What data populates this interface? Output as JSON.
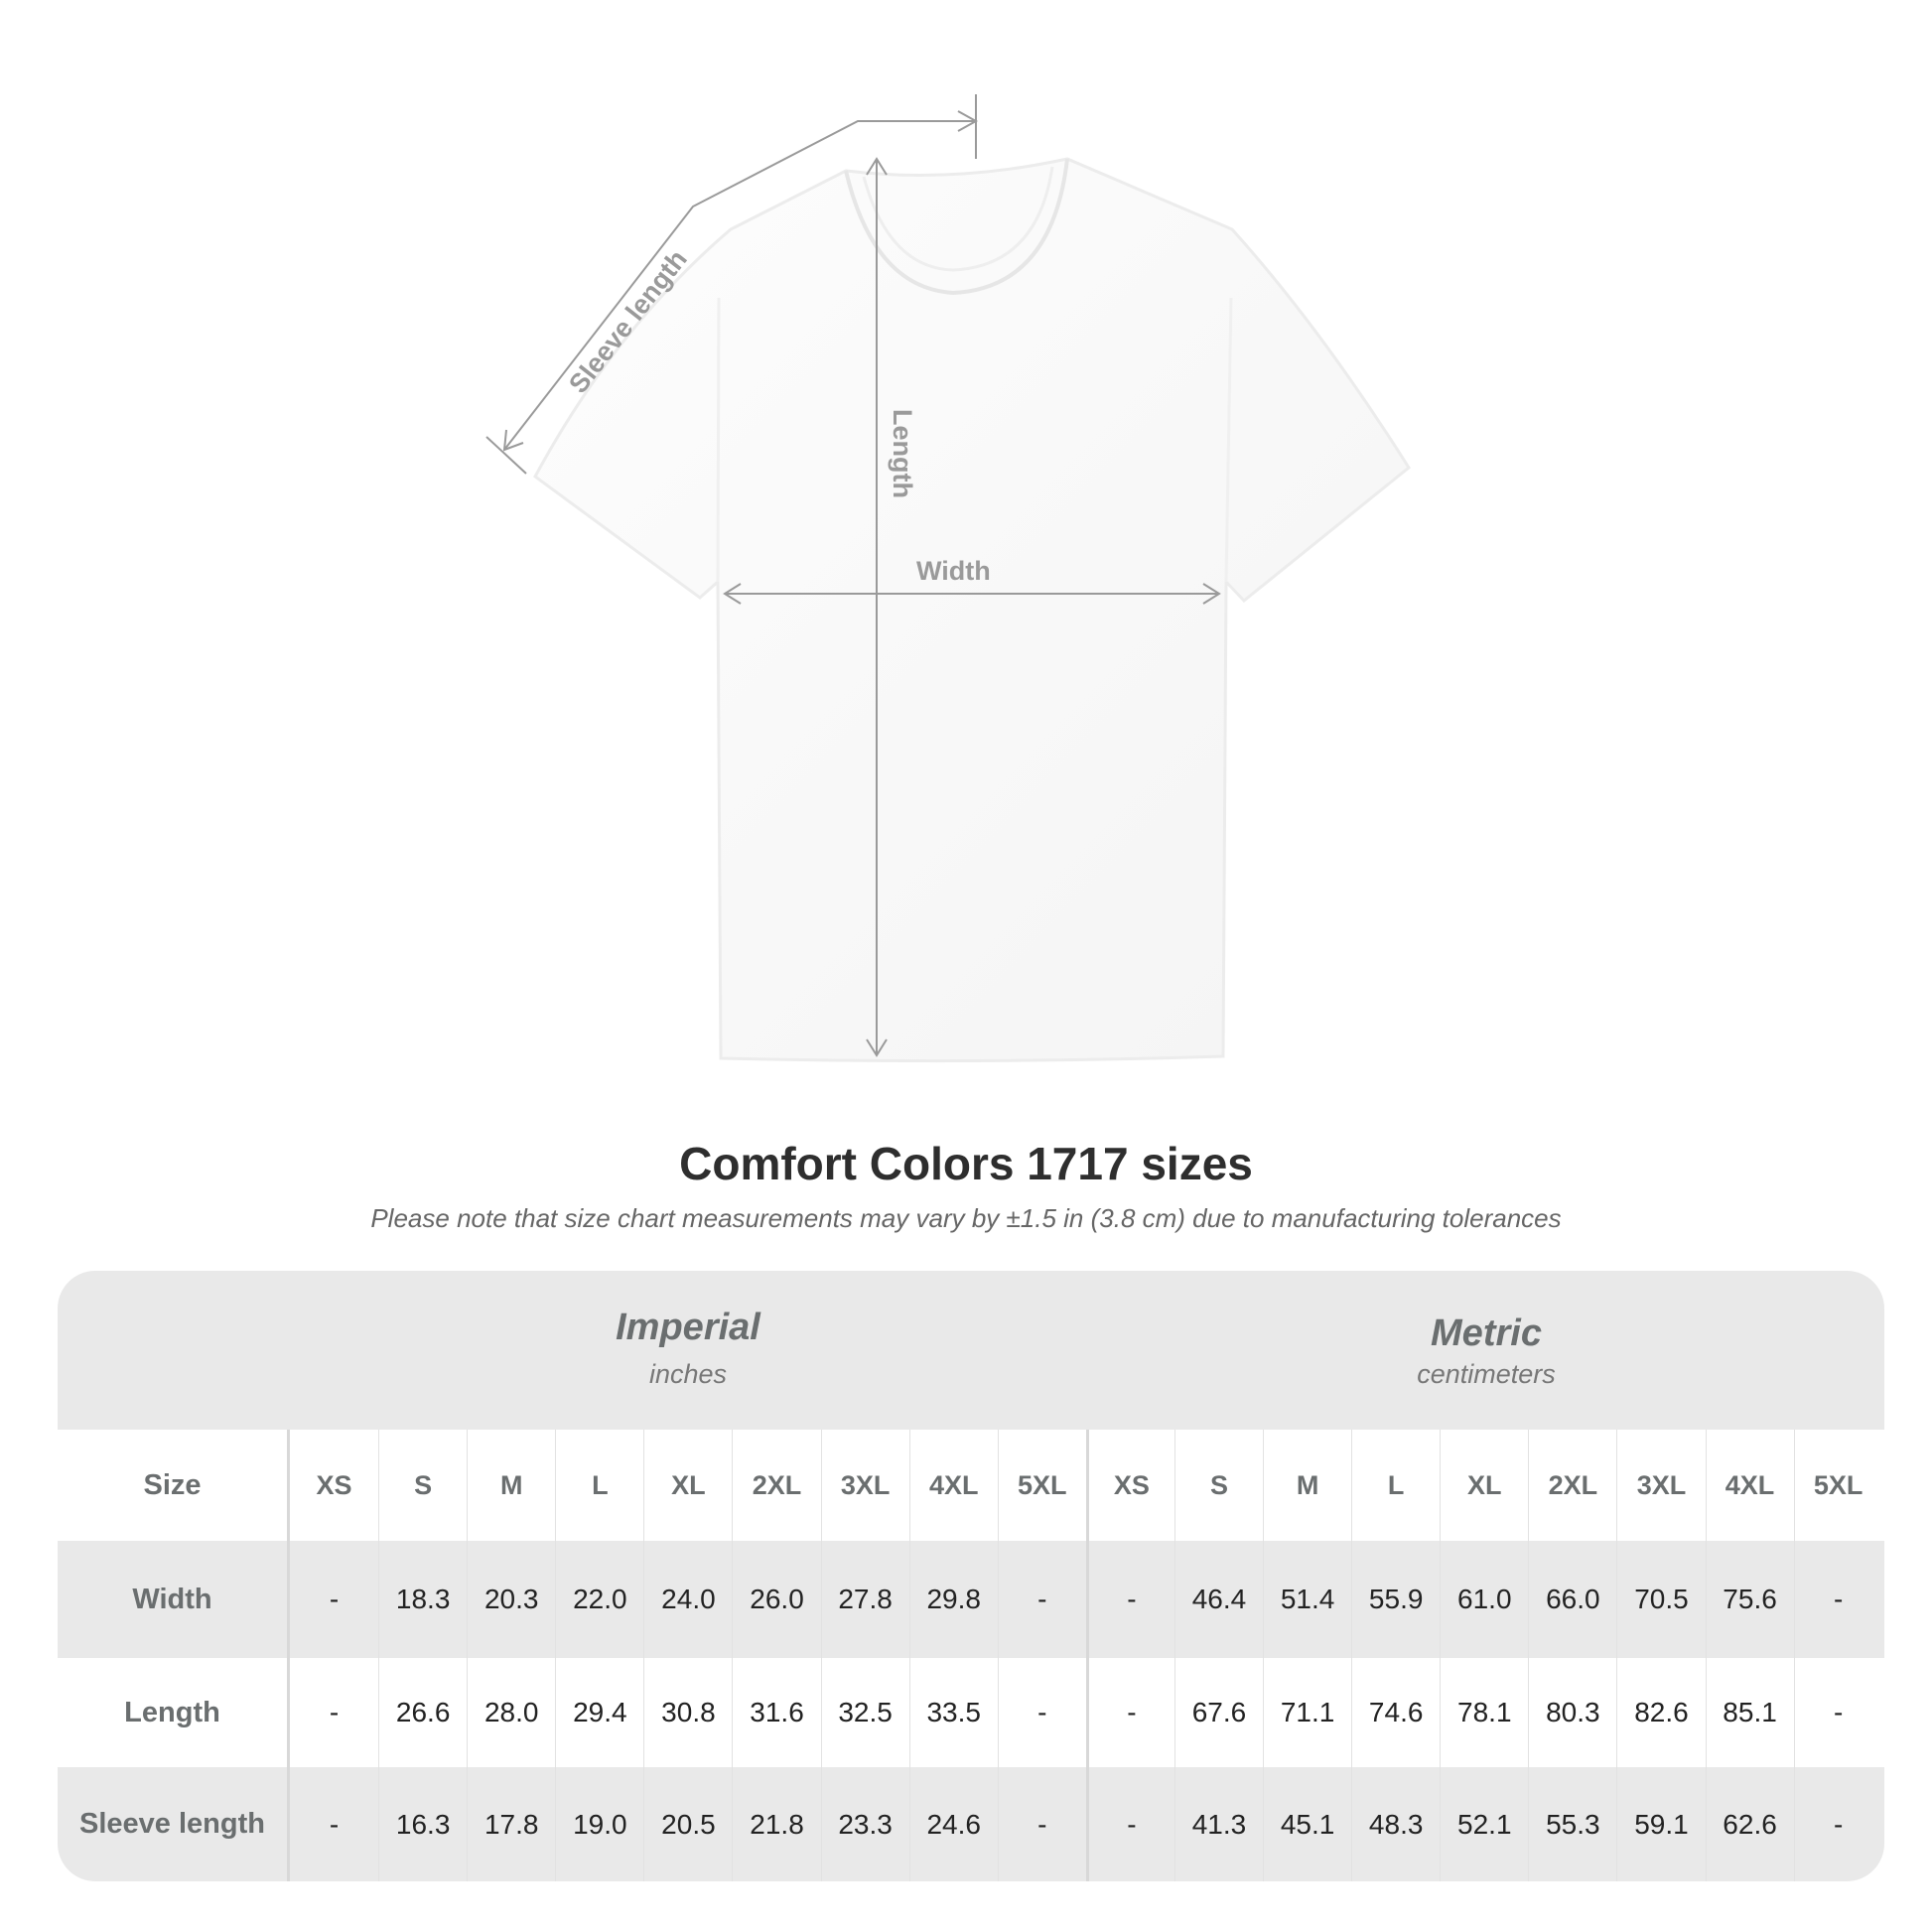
{
  "diagram": {
    "labels": {
      "sleeve": "Sleeve length",
      "length": "Length",
      "width": "Width"
    },
    "line_color": "#9a9a9a"
  },
  "title": "Comfort Colors 1717 sizes",
  "subtitle": "Please note that size chart measurements may vary by ±1.5 in (3.8 cm) due to manufacturing tolerances",
  "table": {
    "imperial": {
      "name": "Imperial",
      "unit": "inches"
    },
    "metric": {
      "name": "Metric",
      "unit": "centimeters"
    },
    "size_label": "Size",
    "sizes": [
      "XS",
      "S",
      "M",
      "L",
      "XL",
      "2XL",
      "3XL",
      "4XL",
      "5XL"
    ],
    "rows": [
      {
        "label": "Width",
        "imperial": [
          "-",
          "18.3",
          "20.3",
          "22.0",
          "24.0",
          "26.0",
          "27.8",
          "29.8",
          "-"
        ],
        "metric": [
          "-",
          "46.4",
          "51.4",
          "55.9",
          "61.0",
          "66.0",
          "70.5",
          "75.6",
          "-"
        ]
      },
      {
        "label": "Length",
        "imperial": [
          "-",
          "26.6",
          "28.0",
          "29.4",
          "30.8",
          "31.6",
          "32.5",
          "33.5",
          "-"
        ],
        "metric": [
          "-",
          "67.6",
          "71.1",
          "74.6",
          "78.1",
          "80.3",
          "82.6",
          "85.1",
          "-"
        ]
      },
      {
        "label": "Sleeve length",
        "imperial": [
          "-",
          "16.3",
          "17.8",
          "19.0",
          "20.5",
          "21.8",
          "23.3",
          "24.6",
          "-"
        ],
        "metric": [
          "-",
          "41.3",
          "45.1",
          "48.3",
          "52.1",
          "55.3",
          "59.1",
          "62.6",
          "-"
        ]
      }
    ],
    "colors": {
      "band": "#e9e9e9",
      "header_text": "#6a6e6f"
    }
  }
}
